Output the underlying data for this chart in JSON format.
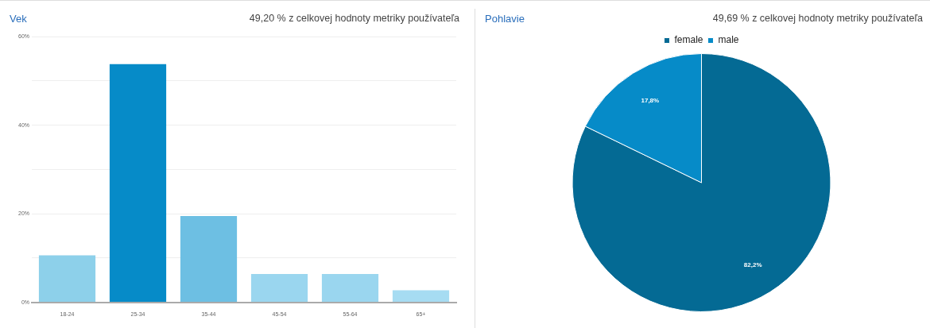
{
  "chart_data": [
    {
      "type": "bar",
      "title": "Vek",
      "subtitle": "49,20 % z celkovej hodnoty metriky používateľa",
      "categories": [
        "18-24",
        "25-34",
        "35-44",
        "45-54",
        "55-64",
        "65+"
      ],
      "values": [
        10.6,
        53.8,
        19.5,
        6.4,
        6.4,
        2.7
      ],
      "colors": [
        "#8dd0ea",
        "#068bc8",
        "#6dbfe3",
        "#9ad6ef",
        "#9ad6ef",
        "#a6dcf2"
      ],
      "ylim": [
        0,
        60
      ],
      "yticks": [
        {
          "value": 0,
          "label": "0%"
        },
        {
          "value": 10,
          "label": null
        },
        {
          "value": 20,
          "label": "20%"
        },
        {
          "value": 30,
          "label": null
        },
        {
          "value": 40,
          "label": "40%"
        },
        {
          "value": 50,
          "label": null
        },
        {
          "value": 60,
          "label": "60%"
        }
      ],
      "grid": "y",
      "legend": false
    },
    {
      "type": "pie",
      "title": "Pohlavie",
      "subtitle": "49,69 % z celkovej hodnoty metriky používateľa",
      "categories": [
        "female",
        "male"
      ],
      "values": [
        82.2,
        17.8
      ],
      "colors": [
        "#046a94",
        "#068bc8"
      ],
      "value_labels": [
        "82,2%",
        "17,8%"
      ],
      "legend": "top"
    }
  ]
}
